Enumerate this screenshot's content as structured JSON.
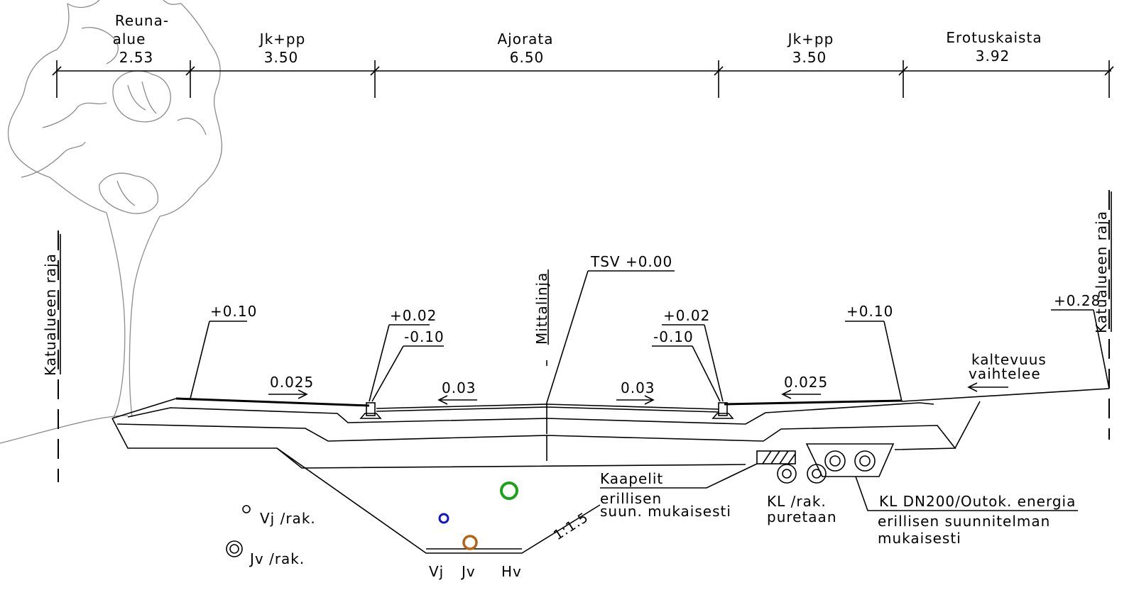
{
  "dimensions": {
    "reuna_alue": {
      "label_line1": "Reuna-",
      "label_line2": "alue",
      "value": "2.53"
    },
    "jkpp_left": {
      "label": "Jk+pp",
      "value": "3.50"
    },
    "ajorata": {
      "label": "Ajorata",
      "value": "6.50"
    },
    "jkpp_right": {
      "label": "Jk+pp",
      "value": "3.50"
    },
    "erotuskaista": {
      "label": "Erotuskaista",
      "value": "3.92"
    }
  },
  "boundary_left": "Katualueen raja",
  "boundary_right": "Katualueen raja",
  "centerline": "Mittalinja",
  "elevations": {
    "tsv": "TSV +0.00",
    "left_edge": "+0.10",
    "left_curb_top": "+0.02",
    "left_curb_bottom": "-0.10",
    "right_curb_top": "+0.02",
    "right_curb_bottom": "-0.10",
    "right_edge": "+0.10",
    "far_right": "+0.28"
  },
  "slopes": {
    "left_walkway": "0.025",
    "left_lane": "0.03",
    "right_lane": "0.03",
    "right_walkway": "0.025",
    "trench": "1:1.5"
  },
  "variable_slope": {
    "line1": "kaltevuus",
    "line2": "vaihtelee"
  },
  "cables": {
    "line1": "Kaapelit",
    "line2": "erillisen",
    "line3": "suun. mukaisesti"
  },
  "kl_removed": {
    "line1": "KL /rak.",
    "line2": "puretaan"
  },
  "kl_dn200": {
    "line1": "KL DN200/Outok. energia",
    "line2": "erillisen suunnitelman",
    "line3": "mukaisesti"
  },
  "legend": {
    "vj": "Vj /rak.",
    "jv": "Jv /rak."
  },
  "pipes": {
    "vj": "Vj",
    "jv": "Jv",
    "hv": "Hv"
  },
  "colors": {
    "hv": "#1aa31a",
    "vj": "#1414c8",
    "jv": "#b46414",
    "tree": "#8c8c8c"
  }
}
